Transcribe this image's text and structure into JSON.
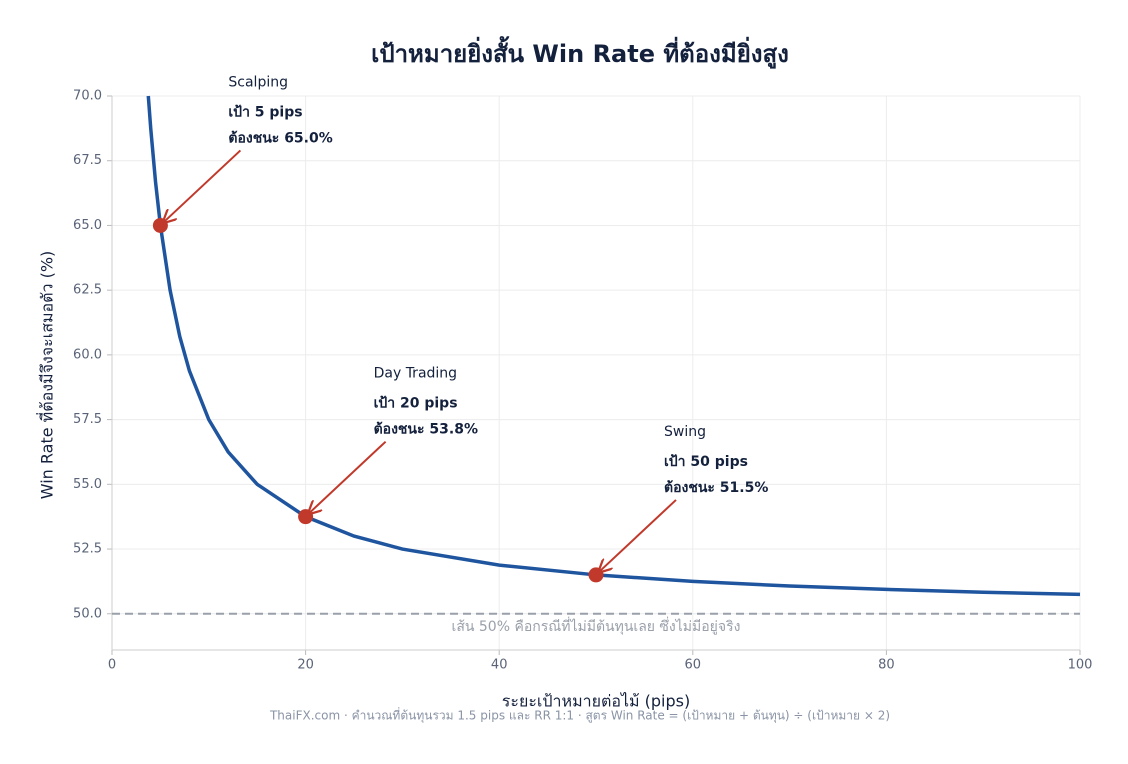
{
  "chart_data": {
    "type": "line",
    "title": "เป้าหมายยิ่งสั้น  Win Rate ที่ต้องมียิ่งสูง",
    "xlabel": "ระยะเป้าหมายต่อไม้ (pips)",
    "ylabel": "Win Rate ที่ต้องมีจึงจะเสมอตัว (%)",
    "footer": "ThaiFX.com  ·  คำนวณที่ต้นทุนรวม 1.5 pips และ RR 1:1  ·  สูตร  Win Rate = (เป้าหมาย + ต้นทุน) ÷ (เป้าหมาย × 2)",
    "x": [
      3.75,
      4,
      4.5,
      5,
      6,
      7,
      8,
      10,
      12,
      15,
      20,
      25,
      30,
      40,
      50,
      60,
      70,
      80,
      90,
      100
    ],
    "values": [
      70,
      68.75,
      66.67,
      65,
      62.5,
      60.71,
      59.38,
      57.5,
      56.25,
      55,
      53.75,
      53,
      52.5,
      51.88,
      51.5,
      51.25,
      51.07,
      50.94,
      50.83,
      50.75
    ],
    "color": "#1f559e",
    "marker_color": "#c0392b",
    "xlim": [
      0,
      100
    ],
    "xticks": [
      0,
      20,
      40,
      60,
      80,
      100
    ],
    "ylim": [
      48.6,
      70
    ],
    "yticks": [
      {
        "value": 50,
        "label": "50.0"
      },
      52.5,
      {
        "value": 55,
        "label": "55.0"
      },
      57.5,
      {
        "value": 60,
        "label": "60.0"
      },
      62.5,
      {
        "value": 65,
        "label": "65.0"
      },
      67.5,
      {
        "value": 70,
        "label": "70.0"
      }
    ],
    "grid": true,
    "reference_line": {
      "value": 50,
      "label": "เส้น 50% คือกรณีที่ไม่มีต้นทุนเลย ซึ่งไม่มีอยู่จริง"
    },
    "annotations": [
      {
        "label": "Scalping",
        "lines": [
          "เป้า 5 pips",
          "ต้องชนะ 65.0%"
        ],
        "x": 5,
        "y": 65
      },
      {
        "label": "Day Trading",
        "lines": [
          "เป้า 20 pips",
          "ต้องชนะ 53.8%"
        ],
        "x": 20,
        "y": 53.75
      },
      {
        "label": "Swing",
        "lines": [
          "เป้า 50 pips",
          "ต้องชนะ 51.5%"
        ],
        "x": 50,
        "y": 51.5
      }
    ]
  }
}
